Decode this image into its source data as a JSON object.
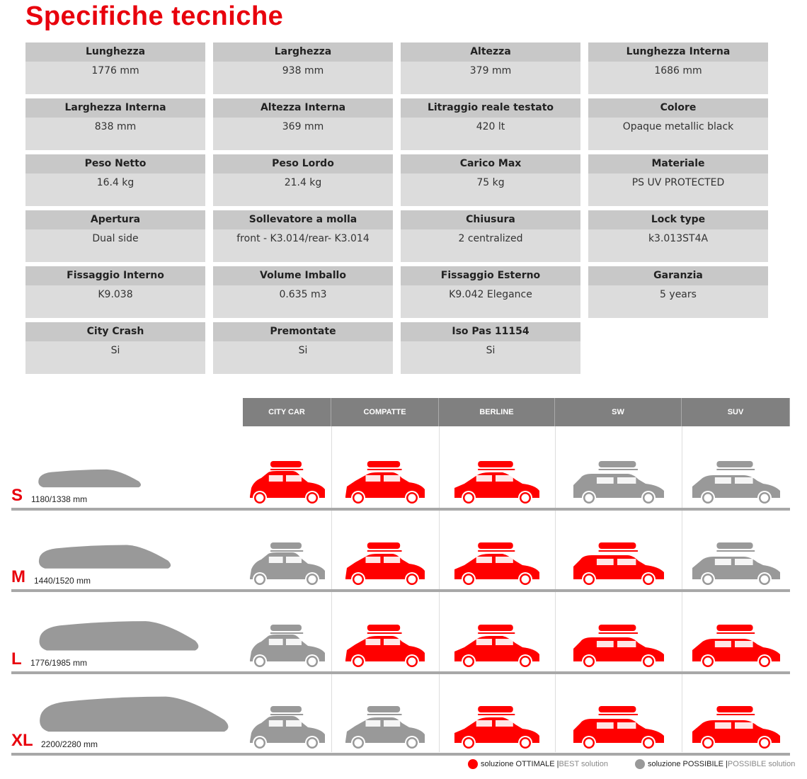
{
  "title": "Specifiche tecniche",
  "specs": [
    {
      "label": "Lunghezza",
      "value": "1776 mm"
    },
    {
      "label": "Larghezza",
      "value": "938 mm"
    },
    {
      "label": "Altezza",
      "value": "379 mm"
    },
    {
      "label": "Lunghezza Interna",
      "value": "1686 mm"
    },
    {
      "label": "Larghezza Interna",
      "value": "838 mm"
    },
    {
      "label": "Altezza Interna",
      "value": "369 mm"
    },
    {
      "label": "Litraggio reale testato",
      "value": "420 lt"
    },
    {
      "label": "Colore",
      "value": "Opaque metallic black"
    },
    {
      "label": "Peso Netto",
      "value": "16.4 kg"
    },
    {
      "label": "Peso Lordo",
      "value": "21.4 kg"
    },
    {
      "label": "Carico Max",
      "value": "75 kg"
    },
    {
      "label": "Materiale",
      "value": "PS UV PROTECTED"
    },
    {
      "label": "Apertura",
      "value": "Dual side"
    },
    {
      "label": "Sollevatore a molla",
      "value": "front - K3.014/rear- K3.014"
    },
    {
      "label": "Chiusura",
      "value": "2 centralized"
    },
    {
      "label": "Lock type",
      "value": "k3.013ST4A"
    },
    {
      "label": "Fissaggio Interno",
      "value": "K9.038"
    },
    {
      "label": "Volume Imballo",
      "value": "0.635 m3"
    },
    {
      "label": "Fissaggio Esterno",
      "value": "K9.042 Elegance"
    },
    {
      "label": "Garanzia",
      "value": "5 years"
    },
    {
      "label": "City Crash",
      "value": "Si"
    },
    {
      "label": "Premontate",
      "value": "Si"
    },
    {
      "label": "Iso Pas 11154",
      "value": "Si"
    }
  ],
  "matrix": {
    "columns": [
      "CITY CAR",
      "COMPATTE",
      "BERLINE",
      "SW",
      "SUV"
    ],
    "rows": [
      {
        "size": "S",
        "dimensions": "1180/1338 mm",
        "fit": [
          "best",
          "best",
          "best",
          "possible",
          "possible"
        ]
      },
      {
        "size": "M",
        "dimensions": "1440/1520 mm",
        "fit": [
          "possible",
          "best",
          "best",
          "best",
          "possible"
        ]
      },
      {
        "size": "L",
        "dimensions": "1776/1985 mm",
        "fit": [
          "possible",
          "best",
          "best",
          "best",
          "best"
        ]
      },
      {
        "size": "XL",
        "dimensions": "2200/2280 mm",
        "fit": [
          "possible",
          "possible",
          "best",
          "best",
          "best"
        ]
      }
    ]
  },
  "legend": {
    "best": {
      "it": "soluzione OTTIMALE |",
      "en": " BEST solution",
      "color": "#ff0000"
    },
    "possible": {
      "it": "soluzione POSSIBILE |",
      "en": " POSSIBLE solution",
      "color": "#999999"
    }
  }
}
